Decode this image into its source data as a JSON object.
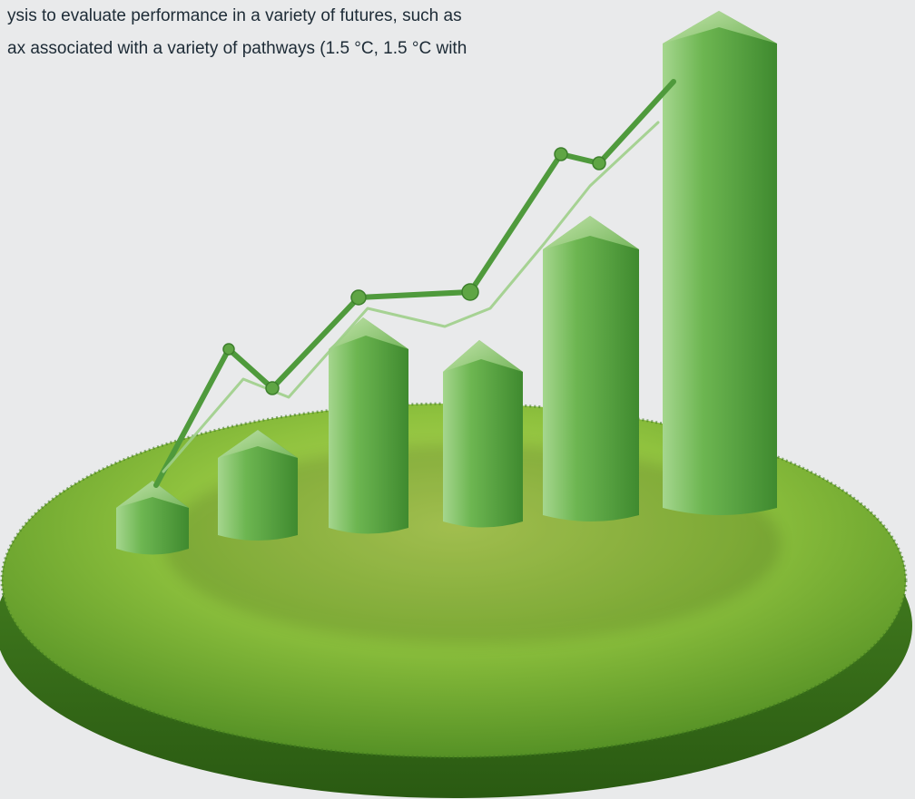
{
  "article": {
    "lines": [
      "ysis to evaluate performance in a variety of futures, such as",
      "ax associated with a variety of pathways (1.5 °C, 1.5 °C with"
    ]
  },
  "illustration": {
    "subject": "3D green bar chart with trend line on a grass-covered disc",
    "colors": {
      "background": "#e9eaeb",
      "text": "#1d2b36",
      "bar_light": "#8fca78",
      "bar_mid": "#5fa544",
      "bar_dark": "#3d7f2c",
      "grass_light": "#9acb3f",
      "grass_dark": "#3c7a1c",
      "trend_line": "#4f9a3c"
    }
  }
}
